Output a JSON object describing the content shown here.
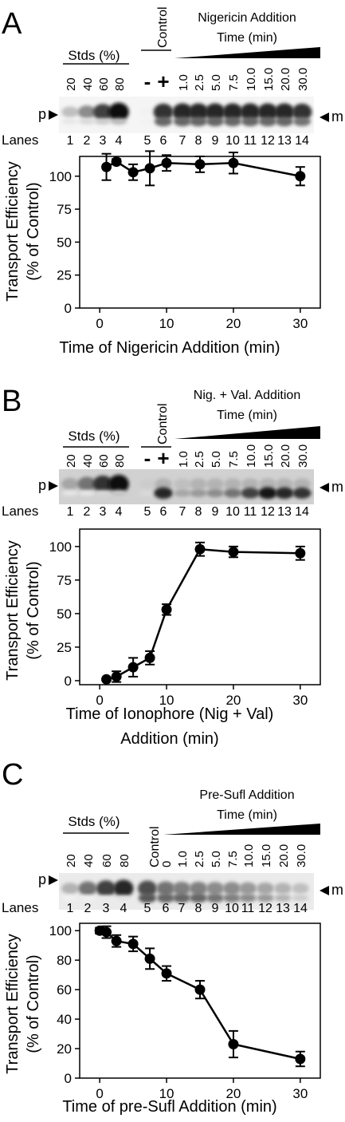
{
  "figure": {
    "background": "#ffffff",
    "panels": [
      {
        "letter": "A",
        "stds_label": "Stds (%)",
        "std_values": [
          "20",
          "40",
          "60",
          "80"
        ],
        "control_label": "Control",
        "control_minus": "-",
        "control_plus": "+",
        "time_header_line1": "Nigericin Addition",
        "time_header_line2": "Time (min)",
        "time_values": [
          "1.0",
          "2.5",
          "5.0",
          "7.5",
          "10.0",
          "15.0",
          "20.0",
          "30.0"
        ],
        "band_p_label": "p",
        "band_m_label": "m",
        "lanes_label": "Lanes",
        "lane_numbers": [
          "1",
          "2",
          "3",
          "4",
          "5",
          "6",
          "7",
          "8",
          "9",
          "10",
          "11",
          "12",
          "13",
          "14"
        ],
        "blot_intensity_p": [
          0.25,
          0.45,
          0.75,
          0.95,
          0.05,
          0.8,
          0.85,
          0.85,
          0.85,
          0.85,
          0.85,
          0.85,
          0.85,
          0.8
        ],
        "blot_intensity_m": [
          0.1,
          0.15,
          0.2,
          0.25,
          0.05,
          0.6,
          0.6,
          0.6,
          0.6,
          0.6,
          0.6,
          0.6,
          0.6,
          0.55
        ],
        "blot_background": 0.04
      },
      {
        "letter": "B",
        "stds_label": "Stds (%)",
        "std_values": [
          "20",
          "40",
          "60",
          "80"
        ],
        "control_label": "Control",
        "control_minus": "-",
        "control_plus": "+",
        "time_header_line1": "Nig. + Val. Addition",
        "time_header_line2": "Time (min)",
        "time_values": [
          "1.0",
          "2.5",
          "5.0",
          "7.5",
          "10.0",
          "15.0",
          "20.0",
          "30.0"
        ],
        "band_p_label": "p",
        "band_m_label": "m",
        "lanes_label": "Lanes",
        "lane_numbers": [
          "1",
          "2",
          "3",
          "4",
          "5",
          "6",
          "7",
          "8",
          "9",
          "10",
          "11",
          "12",
          "13",
          "14"
        ],
        "blot_intensity_p": [
          0.35,
          0.55,
          0.8,
          0.95,
          0.2,
          0.3,
          0.25,
          0.3,
          0.3,
          0.3,
          0.3,
          0.3,
          0.3,
          0.3
        ],
        "blot_intensity_m": [
          0.1,
          0.1,
          0.15,
          0.2,
          0.15,
          0.85,
          0.35,
          0.4,
          0.45,
          0.55,
          0.75,
          0.9,
          0.85,
          0.8
        ],
        "blot_background": 0.18
      },
      {
        "letter": "C",
        "stds_label": "Stds (%)",
        "std_values": [
          "20",
          "40",
          "60",
          "80"
        ],
        "control_label": "Control",
        "control_minus": "",
        "control_plus": "",
        "time_header_line1": "Pre-Sufl Addition",
        "time_header_line2": "Time (min)",
        "time_values": [
          "0",
          "1.0",
          "2.5",
          "5.0",
          "7.5",
          "10.0",
          "15.0",
          "20.0",
          "30.0"
        ],
        "band_p_label": "p",
        "band_m_label": "m",
        "lanes_label": "Lanes",
        "lane_numbers": [
          "1",
          "2",
          "3",
          "4",
          "5",
          "6",
          "7",
          "8",
          "9",
          "10",
          "11",
          "12",
          "13",
          "14"
        ],
        "blot_intensity_p": [
          0.3,
          0.55,
          0.75,
          0.85,
          0.7,
          0.55,
          0.5,
          0.5,
          0.45,
          0.45,
          0.4,
          0.35,
          0.3,
          0.25
        ],
        "blot_intensity_m": [
          0.05,
          0.05,
          0.08,
          0.1,
          0.65,
          0.6,
          0.6,
          0.6,
          0.55,
          0.5,
          0.45,
          0.4,
          0.3,
          0.2
        ],
        "blot_background": 0.08
      }
    ]
  },
  "chart_data": [
    {
      "type": "line",
      "panel": "A",
      "xlabel": "Time of Nigericin Addition (min)",
      "ylabel": "Transport Efficiency (% of Control)",
      "xlim": [
        -3,
        33
      ],
      "ylim": [
        0,
        115
      ],
      "xticks": [
        0,
        10,
        20,
        30
      ],
      "yticks": [
        0,
        25,
        50,
        75,
        100
      ],
      "grid": false,
      "series": [
        {
          "x": [
            1.0,
            2.5,
            5.0,
            7.5,
            10.0,
            15.0,
            20.0,
            30.0
          ],
          "y": [
            107,
            111,
            103,
            106,
            110,
            109,
            110,
            100
          ],
          "err": [
            10,
            2,
            6,
            13,
            6,
            6,
            8,
            7
          ]
        }
      ]
    },
    {
      "type": "line",
      "panel": "B",
      "xlabel": "Time of Ionophore (Nig + Val) Addition (min)",
      "ylabel": "Transport Efficiency (% of Control)",
      "xlim": [
        -3,
        33
      ],
      "ylim": [
        -3,
        113
      ],
      "xticks": [
        0,
        10,
        20,
        30
      ],
      "yticks": [
        0,
        25,
        50,
        75,
        100
      ],
      "grid": false,
      "series": [
        {
          "x": [
            1.0,
            2.5,
            5.0,
            7.5,
            10.0,
            15.0,
            20.0,
            30.0
          ],
          "y": [
            1,
            3,
            10,
            17,
            53,
            98,
            96,
            95
          ],
          "err": [
            1,
            4,
            7,
            5,
            4,
            5,
            4,
            5
          ]
        }
      ]
    },
    {
      "type": "line",
      "panel": "C",
      "xlabel": "Time of pre-Sufl Addition (min)",
      "ylabel": "Transport Efficiency (% of Control)",
      "xlim": [
        -3,
        33
      ],
      "ylim": [
        0,
        105
      ],
      "xticks": [
        0,
        10,
        20,
        30
      ],
      "yticks": [
        0,
        20,
        40,
        60,
        80,
        100
      ],
      "grid": false,
      "series": [
        {
          "x": [
            0,
            1.0,
            2.5,
            5.0,
            7.5,
            10.0,
            15.0,
            20.0,
            30.0
          ],
          "y": [
            100,
            99,
            93,
            91,
            81,
            71,
            60,
            23,
            13
          ],
          "err": [
            2,
            4,
            4,
            5,
            7,
            5,
            6,
            9,
            5
          ]
        }
      ]
    }
  ]
}
